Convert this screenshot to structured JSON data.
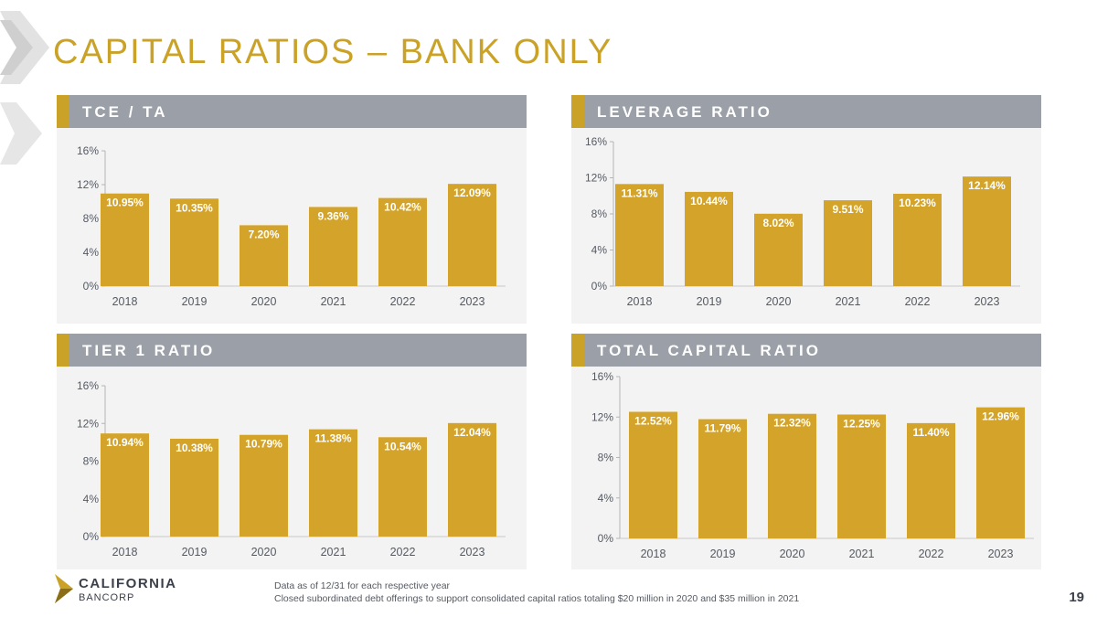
{
  "title": "CAPITAL RATIOS – BANK ONLY",
  "colors": {
    "bar": "#d4a42a",
    "header": "#9a9fa8",
    "accent": "#c9a227",
    "panel_bg": "#f3f3f3"
  },
  "chart_data": [
    {
      "id": "tce",
      "type": "bar",
      "title": "TCE / TA",
      "categories": [
        "2018",
        "2019",
        "2020",
        "2021",
        "2022",
        "2023"
      ],
      "values": [
        10.95,
        10.35,
        7.2,
        9.36,
        10.42,
        12.09
      ],
      "labels": [
        "10.95%",
        "10.35%",
        "7.20%",
        "9.36%",
        "10.42%",
        "12.09%"
      ],
      "ylim": [
        0,
        16
      ],
      "yticks": [
        0,
        4,
        8,
        12,
        16
      ],
      "ytick_labels": [
        "0%",
        "4%",
        "8%",
        "12%",
        "16%"
      ]
    },
    {
      "id": "leverage",
      "type": "bar",
      "title": "LEVERAGE RATIO",
      "categories": [
        "2018",
        "2019",
        "2020",
        "2021",
        "2022",
        "2023"
      ],
      "values": [
        11.31,
        10.44,
        8.02,
        9.51,
        10.23,
        12.14
      ],
      "labels": [
        "11.31%",
        "10.44%",
        "8.02%",
        "9.51%",
        "10.23%",
        "12.14%"
      ],
      "ylim": [
        0,
        16
      ],
      "yticks": [
        0,
        4,
        8,
        12,
        16
      ],
      "ytick_labels": [
        "0%",
        "4%",
        "8%",
        "12%",
        "16%"
      ]
    },
    {
      "id": "tier1",
      "type": "bar",
      "title": "TIER 1 RATIO",
      "categories": [
        "2018",
        "2019",
        "2020",
        "2021",
        "2022",
        "2023"
      ],
      "values": [
        10.94,
        10.38,
        10.79,
        11.38,
        10.54,
        12.04
      ],
      "labels": [
        "10.94%",
        "10.38%",
        "10.79%",
        "11.38%",
        "10.54%",
        "12.04%"
      ],
      "ylim": [
        0,
        16
      ],
      "yticks": [
        0,
        4,
        8,
        12,
        16
      ],
      "ytick_labels": [
        "0%",
        "4%",
        "8%",
        "12%",
        "16%"
      ]
    },
    {
      "id": "total",
      "type": "bar",
      "title": "TOTAL CAPITAL RATIO",
      "categories": [
        "2018",
        "2019",
        "2020",
        "2021",
        "2022",
        "2023"
      ],
      "values": [
        12.52,
        11.79,
        12.32,
        12.25,
        11.4,
        12.96
      ],
      "labels": [
        "12.52%",
        "11.79%",
        "12.32%",
        "12.25%",
        "11.40%",
        "12.96%"
      ],
      "ylim": [
        0,
        16
      ],
      "yticks": [
        0,
        4,
        8,
        12,
        16
      ],
      "ytick_labels": [
        "0%",
        "4%",
        "8%",
        "12%",
        "16%"
      ]
    }
  ],
  "logo": {
    "name": "CALIFORNIA",
    "sub": "BANCORP"
  },
  "footnotes": [
    "Data as of 12/31 for each respective year",
    "Closed subordinated debt offerings to support consolidated capital ratios totaling $20 million in 2020 and $35 million in 2021"
  ],
  "page_number": "19"
}
